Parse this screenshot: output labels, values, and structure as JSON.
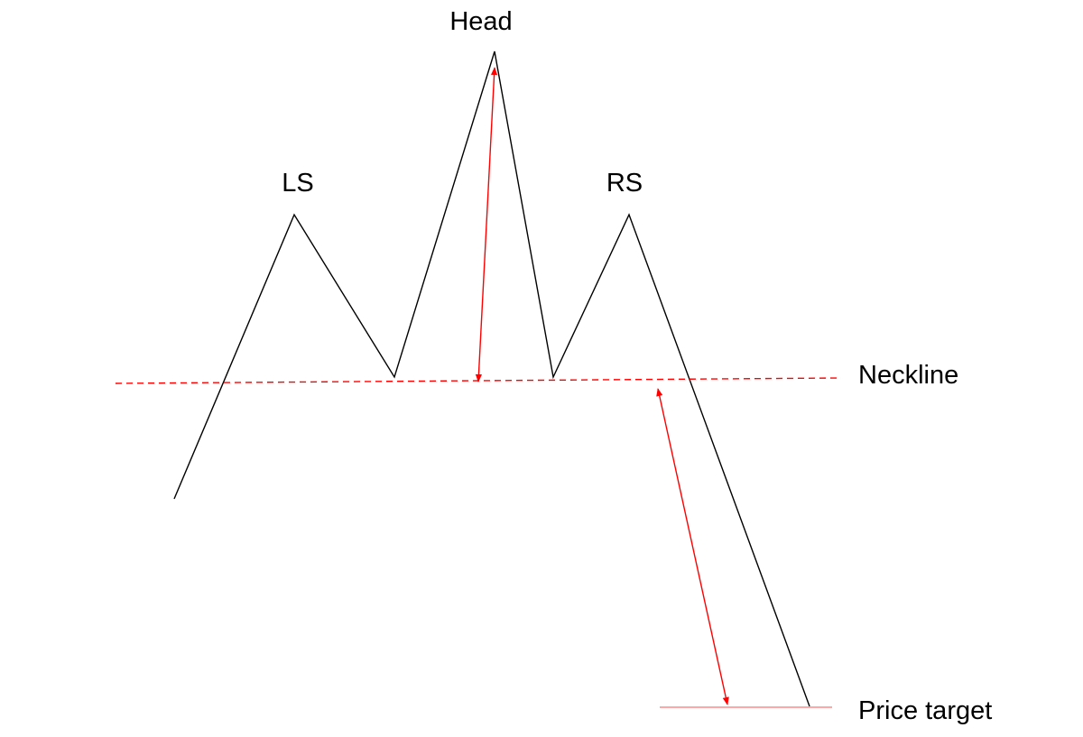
{
  "labels": {
    "head": "Head",
    "left_shoulder": "LS",
    "right_shoulder": "RS",
    "neckline": "Neckline",
    "price_target": "Price target"
  },
  "colors": {
    "price_line": "#000000",
    "neckline": "#ff0000",
    "measure_arrows": "#ff0000",
    "target_line": "#ff8a8a",
    "background": "#ffffff"
  }
}
